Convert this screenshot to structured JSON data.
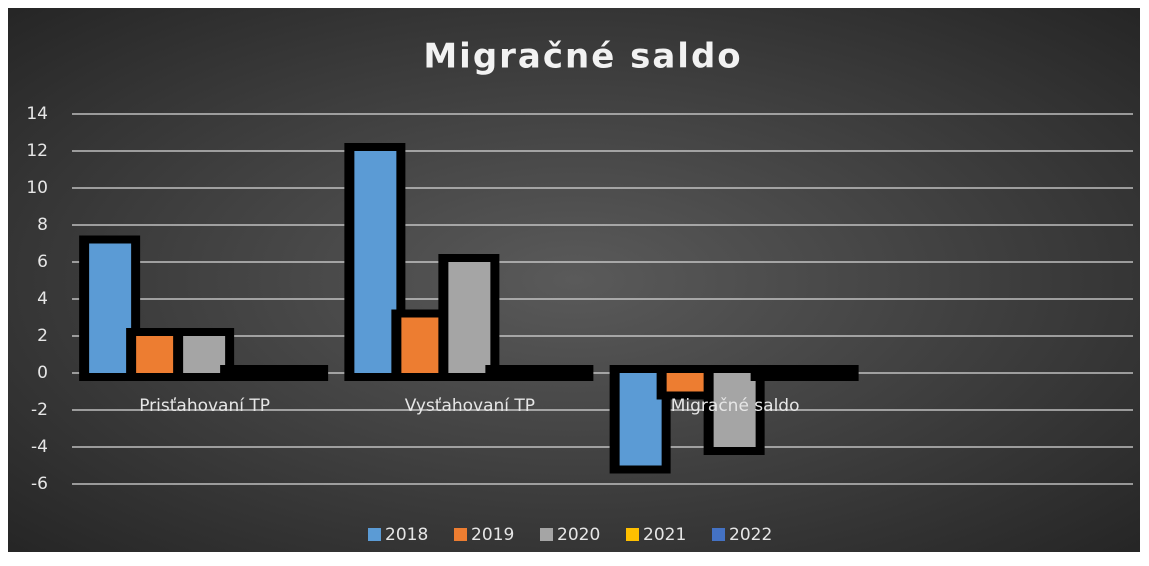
{
  "chart_data": {
    "type": "bar",
    "title": "Migračné saldo",
    "categories": [
      "Prisťahovaní TP",
      "Vysťahovaní TP",
      "Migračné saldo",
      null
    ],
    "series": [
      {
        "name": "2018",
        "color": "#5b9bd5",
        "values": [
          7,
          12,
          -5,
          null
        ]
      },
      {
        "name": "2019",
        "color": "#ed7d31",
        "values": [
          2,
          3,
          -1,
          null
        ]
      },
      {
        "name": "2020",
        "color": "#a5a5a5",
        "values": [
          2,
          6,
          -4,
          null
        ]
      },
      {
        "name": "2021",
        "color": "#ffc000",
        "values": [
          0,
          0,
          0,
          null
        ]
      },
      {
        "name": "2022",
        "color": "#4472c4",
        "values": [
          0,
          0,
          0,
          null
        ]
      }
    ],
    "ylim": [
      -6,
      14
    ],
    "yticks": [
      -6,
      -4,
      -2,
      0,
      2,
      4,
      6,
      8,
      10,
      12,
      14
    ],
    "grid": true,
    "legend": "bottom"
  }
}
